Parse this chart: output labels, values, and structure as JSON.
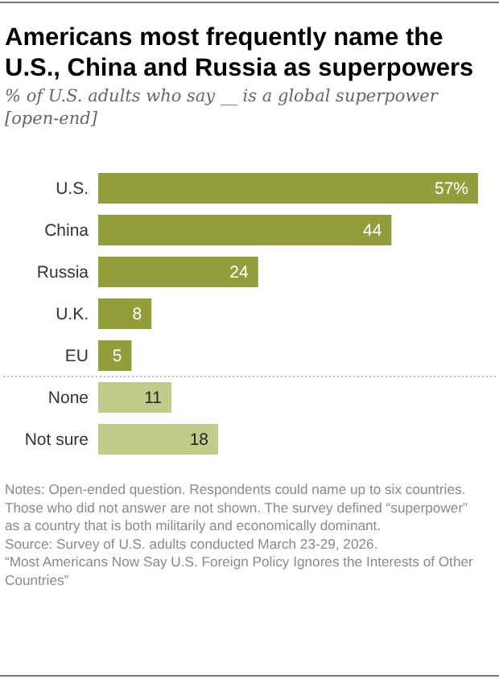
{
  "chart_data": {
    "type": "bar",
    "orientation": "horizontal",
    "title": "Americans most frequently name the U.S., China and Russia as superpowers",
    "subtitle": "% of U.S. adults who say __ is a global superpower [open-end]",
    "categories": [
      "U.S.",
      "China",
      "Russia",
      "U.K.",
      "EU",
      "None",
      "Not sure"
    ],
    "values": [
      57,
      44,
      24,
      8,
      5,
      11,
      18
    ],
    "value_labels": [
      "57%",
      "44",
      "24",
      "8",
      "5",
      "11",
      "18"
    ],
    "colors": [
      "#949d3b",
      "#949d3b",
      "#949d3b",
      "#949d3b",
      "#949d3b",
      "#c3cb8a",
      "#c3cb8a"
    ],
    "annotations": [
      "Notes: Open-ended question. Respondents could name up to six countries. Those who did not answer are not shown. The survey defined “superpower” as a country that is both militarily and economically dominant.",
      "Source: Survey of U.S. adults conducted March 23-29, 2026.",
      "“Most Americans Now Say U.S. Foreign Policy Ignores the Interests of Other Countries”"
    ]
  }
}
